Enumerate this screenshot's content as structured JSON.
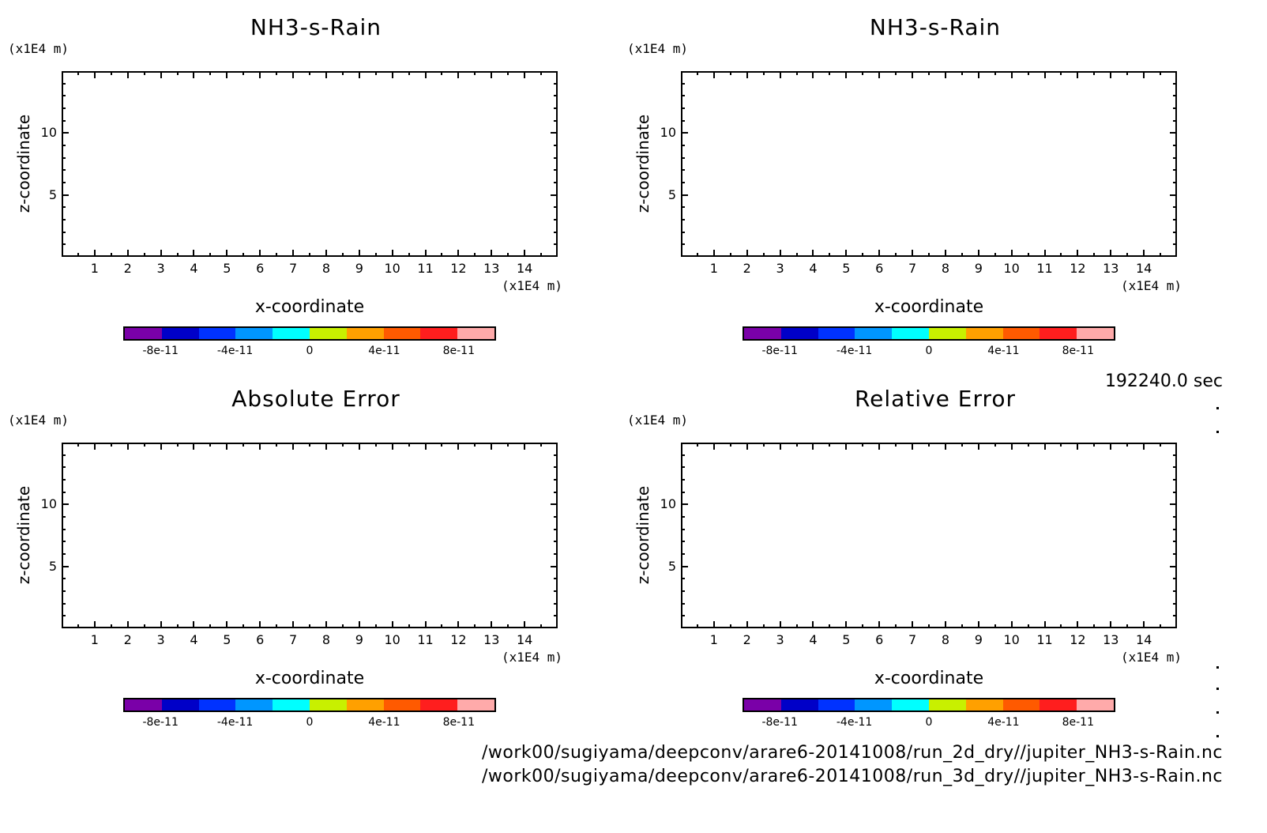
{
  "panels": [
    {
      "id": "p1",
      "title": "NH3-s-Rain",
      "ylabel": "z-coordinate",
      "xlabel": "x-coordinate",
      "yunit": "(x1E4 m)",
      "xunit": "(x1E4 m)"
    },
    {
      "id": "p2",
      "title": "NH3-s-Rain",
      "ylabel": "z-coordinate",
      "xlabel": "x-coordinate",
      "yunit": "(x1E4 m)",
      "xunit": "(x1E4 m)"
    },
    {
      "id": "p3",
      "title": "Absolute Error",
      "ylabel": "z-coordinate",
      "xlabel": "x-coordinate",
      "yunit": "(x1E4 m)",
      "xunit": "(x1E4 m)"
    },
    {
      "id": "p4",
      "title": "Relative Error",
      "ylabel": "z-coordinate",
      "xlabel": "x-coordinate",
      "yunit": "(x1E4 m)",
      "xunit": "(x1E4 m)"
    }
  ],
  "time_label": "192240.0 sec",
  "footer": [
    "/work00/sugiyama/deepconv/arare6-20141008/run_2d_dry//jupiter_NH3-s-Rain.nc",
    "/work00/sugiyama/deepconv/arare6-20141008/run_3d_dry//jupiter_NH3-s-Rain.nc"
  ],
  "chart_data": {
    "type": "heatmap",
    "xlim": [
      0,
      15
    ],
    "ylim": [
      0,
      15
    ],
    "x_ticks": [
      1,
      2,
      3,
      4,
      5,
      6,
      7,
      8,
      9,
      10,
      11,
      12,
      13,
      14
    ],
    "x_tick_labels": [
      "1",
      "2",
      "3",
      "4",
      "5",
      "6",
      "7",
      "8",
      "9",
      "10",
      "11",
      "12",
      "13",
      "14"
    ],
    "y_ticks": [
      5,
      10
    ],
    "y_tick_labels": [
      "5",
      "10"
    ],
    "colorbar": {
      "colors": [
        "#7a00a8",
        "#0000c8",
        "#0032ff",
        "#0096ff",
        "#00ffff",
        "#c8f000",
        "#ffa000",
        "#ff5a00",
        "#ff1e1e",
        "#ffaaaa"
      ],
      "tick_labels": [
        "-8e-11",
        "-4e-11",
        "0",
        "4e-11",
        "8e-11"
      ],
      "tick_values": [
        -8e-11,
        -4e-11,
        0,
        4e-11,
        8e-11
      ],
      "range": [
        -1e-10,
        1e-10
      ]
    }
  }
}
